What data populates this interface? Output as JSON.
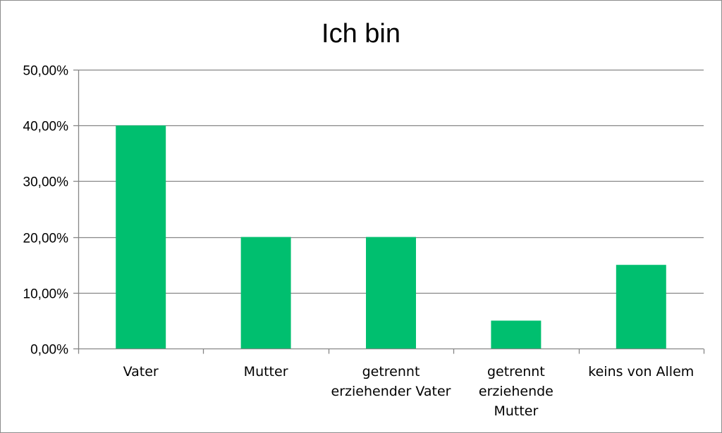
{
  "chart_data": {
    "type": "bar",
    "title": "Ich bin",
    "xlabel": "",
    "ylabel": "",
    "categories": [
      "Vater",
      "Mutter",
      "getrennt erziehender Vater",
      "getrennt erziehende Mutter",
      "keins von Allem"
    ],
    "category_lines": [
      [
        "Vater"
      ],
      [
        "Mutter"
      ],
      [
        "getrennt",
        "erziehender Vater"
      ],
      [
        "getrennt",
        "erziehende",
        "Mutter"
      ],
      [
        "keins von Allem"
      ]
    ],
    "values": [
      0.4,
      0.2,
      0.2,
      0.05,
      0.15
    ],
    "ylim": [
      0,
      0.5
    ],
    "yticks": [
      0,
      0.1,
      0.2,
      0.3,
      0.4,
      0.5
    ],
    "ytick_labels": [
      "0,00%",
      "10,00%",
      "20,00%",
      "30,00%",
      "40,00%",
      "50,00%"
    ],
    "grid": true,
    "legend": "none",
    "bar_color": "#00BF6F",
    "grid_color": "#868686",
    "axis_color": "#868686"
  }
}
